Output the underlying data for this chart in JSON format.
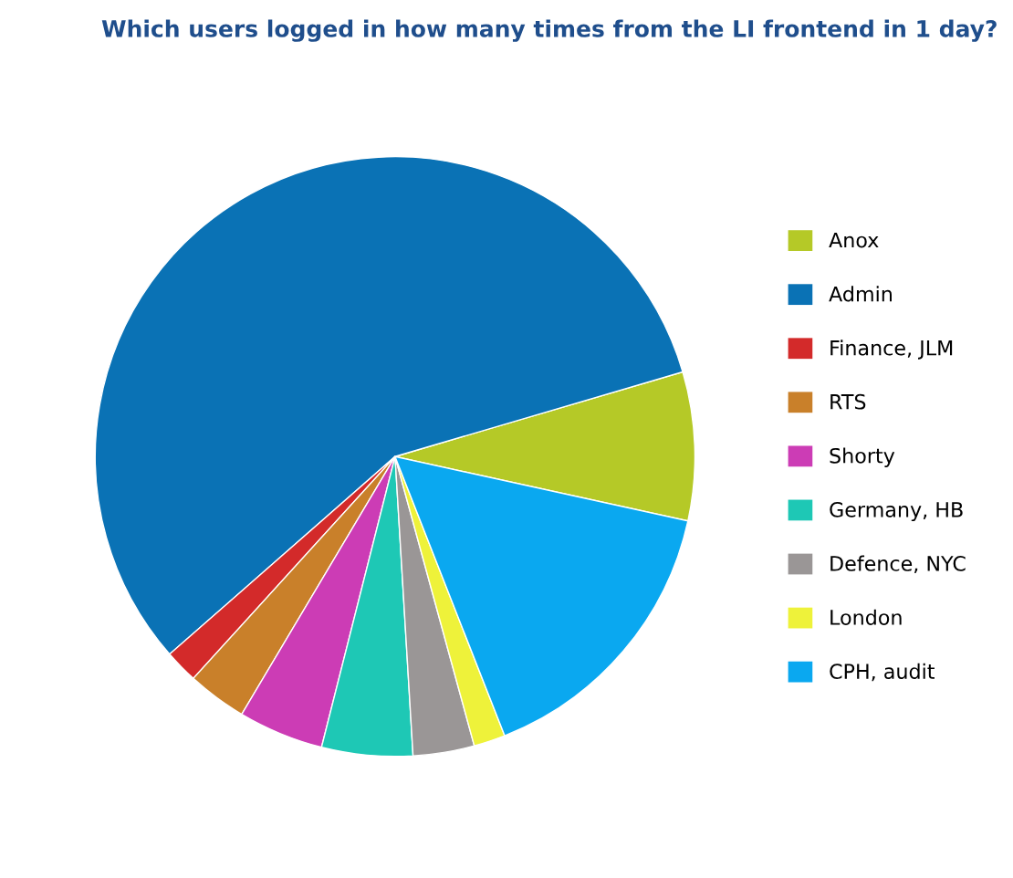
{
  "chart_data": {
    "type": "pie",
    "title": "Which users logged in how many times from the LI frontend in 1 day?",
    "categories": [
      "Anox",
      "Admin",
      "Finance, JLM",
      "RTS",
      "Shorty",
      "Germany, HB",
      "Defence, NYC",
      "London",
      "CPH, audit"
    ],
    "values": [
      8.0,
      56.9,
      1.8,
      3.2,
      4.6,
      4.9,
      3.3,
      1.7,
      15.6
    ],
    "colors": [
      "#b5c927",
      "#0a72b5",
      "#d32a2a",
      "#c9802a",
      "#cc3cb5",
      "#1ec8b5",
      "#9a9696",
      "#eef23a",
      "#0aa8f0"
    ],
    "legend": "right"
  }
}
